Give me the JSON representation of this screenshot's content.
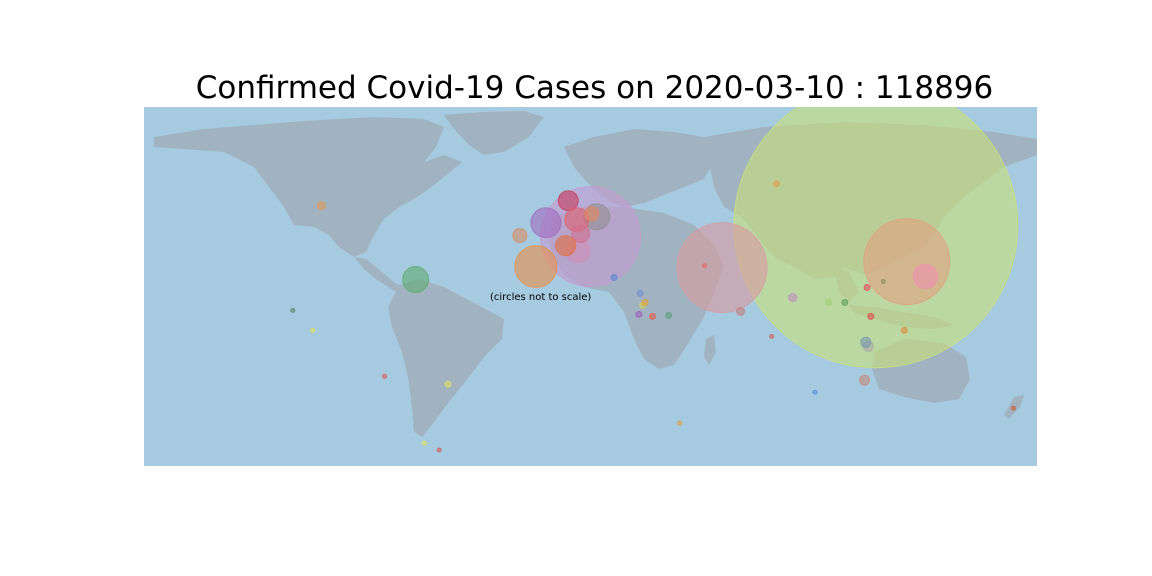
{
  "title": "Confirmed Covid-19 Cases on 2020-03-10 : 118896",
  "note": "(circles not to scale)",
  "colors": {
    "ocean": "#a6cadf",
    "land": "#a1b3c0"
  },
  "chart_data": {
    "type": "bubble-map",
    "projection": "equirectangular",
    "lon_range": [
      -180,
      180
    ],
    "lat_range": [
      -90,
      90
    ],
    "points": [
      {
        "lon": 115.0,
        "lat": 30.5,
        "r": 142,
        "color": "#c9e07a"
      },
      {
        "lon": 0.0,
        "lat": 25.0,
        "r": 50,
        "color": "#c59ad0"
      },
      {
        "lon": 53.0,
        "lat": 9.5,
        "r": 45,
        "color": "#d99aa0"
      },
      {
        "lon": 127.5,
        "lat": 12.5,
        "r": 43,
        "color": "#e1a080"
      },
      {
        "lon": -22.0,
        "lat": 10.0,
        "r": 21,
        "color": "#e8904a"
      },
      {
        "lon": -70.5,
        "lat": 3.5,
        "r": 13,
        "color": "#5faa70"
      },
      {
        "lon": -18.0,
        "lat": 32.0,
        "r": 15,
        "color": "#a06bc0"
      },
      {
        "lon": -9.0,
        "lat": 43.0,
        "r": 10,
        "color": "#c43c5c"
      },
      {
        "lon": 2.5,
        "lat": 35.0,
        "r": 13,
        "color": "#909090"
      },
      {
        "lon": -5.5,
        "lat": 33.5,
        "r": 12,
        "color": "#e06070"
      },
      {
        "lon": -5.0,
        "lat": 18.0,
        "r": 12,
        "color": "#d08fb8"
      },
      {
        "lon": 135.0,
        "lat": 5.0,
        "r": 12,
        "color": "#f090b0"
      },
      {
        "lon": -4.0,
        "lat": 26.5,
        "r": 9,
        "color": "#d07090"
      },
      {
        "lon": -10.0,
        "lat": 20.5,
        "r": 10,
        "color": "#e07040"
      },
      {
        "lon": 0.5,
        "lat": 36.5,
        "r": 7,
        "color": "#e58a60"
      },
      {
        "lon": -28.5,
        "lat": 25.5,
        "r": 7,
        "color": "#d78e68"
      },
      {
        "lon": -108.5,
        "lat": 40.5,
        "r": 4,
        "color": "#e19a5a"
      },
      {
        "lon": 110.5,
        "lat": -47.0,
        "r": 5,
        "color": "#c58a7a"
      },
      {
        "lon": 112.0,
        "lat": -30.0,
        "r": 5,
        "color": "#aaaaaa"
      },
      {
        "lon": 111.0,
        "lat": -28.0,
        "r": 5,
        "color": "#7a98b0"
      },
      {
        "lon": 96.0,
        "lat": -8.0,
        "r": 3,
        "color": "#a0d070"
      },
      {
        "lon": 102.5,
        "lat": -8.0,
        "r": 3,
        "color": "#60a060"
      },
      {
        "lon": 113.0,
        "lat": -15.0,
        "r": 3,
        "color": "#e05050"
      },
      {
        "lon": 126.5,
        "lat": -22.0,
        "r": 3,
        "color": "#e09040"
      },
      {
        "lon": 111.5,
        "lat": -0.5,
        "r": 3,
        "color": "#e55060"
      },
      {
        "lon": 73.0,
        "lat": -25.0,
        "r": 2,
        "color": "#d06060"
      },
      {
        "lon": 81.5,
        "lat": -5.5,
        "r": 4,
        "color": "#c090c0"
      },
      {
        "lon": 60.5,
        "lat": -12.5,
        "r": 4,
        "color": "#c08080"
      },
      {
        "lon": 20.0,
        "lat": -3.5,
        "r": 3,
        "color": "#7090d0"
      },
      {
        "lon": 21.0,
        "lat": -9.5,
        "r": 3,
        "color": "#d0d060"
      },
      {
        "lon": 25.0,
        "lat": -15.0,
        "r": 3,
        "color": "#e06050"
      },
      {
        "lon": 31.5,
        "lat": -14.5,
        "r": 3,
        "color": "#60a080"
      },
      {
        "lon": 22.0,
        "lat": -8.0,
        "r": 3,
        "color": "#e0a040"
      },
      {
        "lon": 9.5,
        "lat": 4.5,
        "r": 3,
        "color": "#5a8ad0"
      },
      {
        "lon": 19.5,
        "lat": -14.0,
        "r": 3,
        "color": "#a060c0"
      },
      {
        "lon": 46.0,
        "lat": 10.5,
        "r": 2,
        "color": "#e07060"
      },
      {
        "lon": 75.0,
        "lat": 51.5,
        "r": 3,
        "color": "#e0a050"
      },
      {
        "lon": -120.0,
        "lat": -12.0,
        "r": 2,
        "color": "#5a8a70"
      },
      {
        "lon": -112.0,
        "lat": -22.0,
        "r": 2,
        "color": "#e0e060"
      },
      {
        "lon": -83.0,
        "lat": -45.0,
        "r": 2,
        "color": "#e06060"
      },
      {
        "lon": -57.5,
        "lat": -49.0,
        "r": 3,
        "color": "#e0e060"
      },
      {
        "lon": -67.0,
        "lat": -78.5,
        "r": 2,
        "color": "#e0e060"
      },
      {
        "lon": -61.0,
        "lat": -82.0,
        "r": 2,
        "color": "#d06060"
      },
      {
        "lon": 36.0,
        "lat": -68.5,
        "r": 2,
        "color": "#e0a040"
      },
      {
        "lon": 90.5,
        "lat": -53.0,
        "r": 2,
        "color": "#5090e0"
      },
      {
        "lon": 118.0,
        "lat": 2.5,
        "r": 2,
        "color": "#909060"
      },
      {
        "lon": 170.5,
        "lat": -61.0,
        "r": 2,
        "color": "#d06040"
      }
    ]
  }
}
